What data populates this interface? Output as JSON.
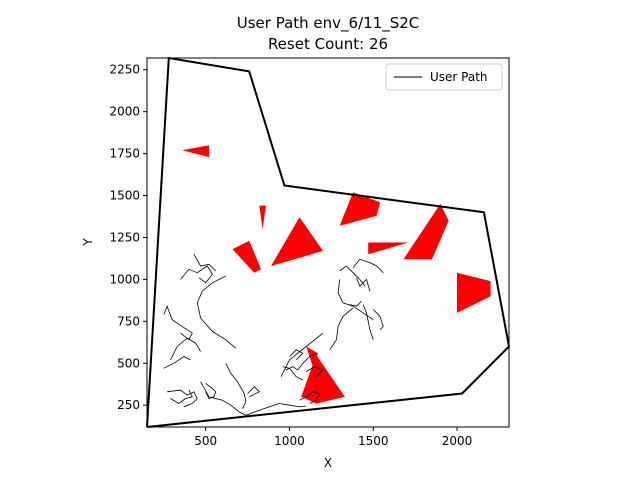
{
  "chart_data": {
    "type": "line",
    "title": "User Path env_6/11_S2C",
    "subtitle": "Reset Count: 26",
    "xlabel": "X",
    "ylabel": "Y",
    "xlim": [
      150,
      2310
    ],
    "ylim": [
      120,
      2320
    ],
    "xticks": [
      500,
      1000,
      1500,
      2000
    ],
    "yticks": [
      250,
      500,
      750,
      1000,
      1250,
      1500,
      1750,
      2000,
      2250
    ],
    "legend": {
      "position": "top-right",
      "entries": [
        "User Path"
      ]
    },
    "boundary": [
      [
        150,
        120
      ],
      [
        280,
        2320
      ],
      [
        760,
        2240
      ],
      [
        970,
        1560
      ],
      [
        2160,
        1400
      ],
      [
        2310,
        600
      ],
      [
        2030,
        320
      ],
      [
        150,
        120
      ]
    ],
    "obstacles": [
      [
        [
          360,
          1770
        ],
        [
          520,
          1800
        ],
        [
          520,
          1730
        ]
      ],
      [
        [
          820,
          1440
        ],
        [
          860,
          1440
        ],
        [
          840,
          1300
        ]
      ],
      [
        [
          890,
          1080
        ],
        [
          1060,
          1370
        ],
        [
          1200,
          1170
        ]
      ],
      [
        [
          660,
          1180
        ],
        [
          760,
          1230
        ],
        [
          830,
          1060
        ],
        [
          790,
          1040
        ]
      ],
      [
        [
          1300,
          1320
        ],
        [
          1380,
          1520
        ],
        [
          1540,
          1460
        ],
        [
          1520,
          1380
        ]
      ],
      [
        [
          1470,
          1220
        ],
        [
          1470,
          1150
        ],
        [
          1710,
          1220
        ]
      ],
      [
        [
          1680,
          1120
        ],
        [
          1900,
          1450
        ],
        [
          1950,
          1350
        ],
        [
          1850,
          1120
        ]
      ],
      [
        [
          2000,
          1040
        ],
        [
          2200,
          990
        ],
        [
          2200,
          900
        ],
        [
          2000,
          800
        ]
      ],
      [
        [
          1100,
          600
        ],
        [
          1170,
          560
        ],
        [
          1140,
          480
        ]
      ],
      [
        [
          1070,
          300
        ],
        [
          1160,
          260
        ],
        [
          1330,
          300
        ],
        [
          1160,
          550
        ]
      ]
    ],
    "series": [
      {
        "name": "User Path",
        "segments": [
          [
            [
              350,
              1000
            ],
            [
              400,
              1060
            ],
            [
              450,
              1040
            ],
            [
              510,
              1080
            ],
            [
              540,
              1030
            ],
            [
              500,
              980
            ],
            [
              460,
              1010
            ]
          ],
          [
            [
              430,
              1150
            ],
            [
              470,
              1080
            ],
            [
              520,
              1090
            ],
            [
              560,
              1050
            ]
          ],
          [
            [
              620,
              1020
            ],
            [
              540,
              980
            ],
            [
              480,
              930
            ],
            [
              450,
              860
            ],
            [
              470,
              770
            ],
            [
              540,
              690
            ],
            [
              620,
              640
            ],
            [
              680,
              590
            ]
          ],
          [
            [
              250,
              790
            ],
            [
              270,
              840
            ],
            [
              300,
              760
            ],
            [
              360,
              720
            ],
            [
              420,
              680
            ],
            [
              400,
              640
            ],
            [
              350,
              680
            ]
          ],
          [
            [
              290,
              520
            ],
            [
              330,
              600
            ],
            [
              390,
              650
            ],
            [
              440,
              620
            ],
            [
              470,
              570
            ]
          ],
          [
            [
              250,
              470
            ],
            [
              310,
              500
            ],
            [
              370,
              540
            ],
            [
              410,
              520
            ]
          ],
          [
            [
              270,
              330
            ],
            [
              350,
              340
            ],
            [
              390,
              310
            ],
            [
              430,
              330
            ],
            [
              450,
              290
            ],
            [
              420,
              260
            ],
            [
              370,
              240
            ]
          ],
          [
            [
              290,
              290
            ],
            [
              340,
              260
            ],
            [
              380,
              290
            ],
            [
              420,
              300
            ],
            [
              400,
              340
            ]
          ],
          [
            [
              500,
              380
            ],
            [
              540,
              350
            ],
            [
              560,
              330
            ],
            [
              550,
              300
            ],
            [
              520,
              290
            ],
            [
              500,
              330
            ]
          ],
          [
            [
              470,
              390
            ],
            [
              520,
              300
            ],
            [
              600,
              280
            ],
            [
              650,
              250
            ],
            [
              700,
              210
            ],
            [
              740,
              190
            ]
          ],
          [
            [
              620,
              500
            ],
            [
              650,
              440
            ],
            [
              690,
              390
            ],
            [
              730,
              320
            ],
            [
              740,
              270
            ],
            [
              720,
              230
            ]
          ],
          [
            [
              740,
              190
            ],
            [
              820,
              220
            ],
            [
              880,
              240
            ],
            [
              940,
              260
            ],
            [
              1000,
              250
            ],
            [
              1060,
              240
            ],
            [
              1100,
              245
            ]
          ],
          [
            [
              750,
              320
            ],
            [
              790,
              360
            ],
            [
              820,
              330
            ],
            [
              760,
              300
            ]
          ],
          [
            [
              950,
              420
            ],
            [
              1000,
              520
            ],
            [
              1050,
              560
            ],
            [
              1100,
              600
            ],
            [
              1150,
              640
            ],
            [
              1200,
              680
            ]
          ],
          [
            [
              1000,
              540
            ],
            [
              1040,
              580
            ],
            [
              1080,
              560
            ],
            [
              1040,
              520
            ]
          ],
          [
            [
              1100,
              450
            ],
            [
              1150,
              480
            ],
            [
              1200,
              460
            ],
            [
              1160,
              420
            ]
          ],
          [
            [
              960,
              480
            ],
            [
              1000,
              470
            ],
            [
              1040,
              420
            ],
            [
              1080,
              400
            ]
          ],
          [
            [
              1060,
              280
            ],
            [
              1100,
              300
            ],
            [
              1140,
              330
            ],
            [
              1180,
              320
            ],
            [
              1160,
              280
            ],
            [
              1120,
              260
            ]
          ],
          [
            [
              980,
              460
            ],
            [
              1020,
              480
            ],
            [
              1050,
              460
            ],
            [
              1080,
              500
            ],
            [
              1120,
              540
            ],
            [
              1160,
              560
            ]
          ],
          [
            [
              1240,
              580
            ],
            [
              1280,
              640
            ],
            [
              1290,
              720
            ],
            [
              1320,
              780
            ],
            [
              1380,
              830
            ]
          ],
          [
            [
              1300,
              1050
            ],
            [
              1340,
              1080
            ],
            [
              1380,
              1040
            ],
            [
              1420,
              1000
            ],
            [
              1450,
              960
            ]
          ],
          [
            [
              1380,
              1070
            ],
            [
              1420,
              1120
            ],
            [
              1480,
              1100
            ],
            [
              1520,
              1080
            ],
            [
              1560,
              1040
            ]
          ],
          [
            [
              1300,
              1000
            ],
            [
              1290,
              920
            ],
            [
              1320,
              860
            ],
            [
              1380,
              840
            ],
            [
              1440,
              800
            ],
            [
              1500,
              760
            ]
          ],
          [
            [
              1400,
              1010
            ],
            [
              1420,
              960
            ],
            [
              1460,
              1000
            ],
            [
              1480,
              930
            ]
          ],
          [
            [
              1440,
              850
            ],
            [
              1460,
              800
            ],
            [
              1480,
              700
            ],
            [
              1500,
              640
            ]
          ],
          [
            [
              1500,
              820
            ],
            [
              1540,
              780
            ],
            [
              1560,
              720
            ],
            [
              1540,
              700
            ]
          ],
          [
            [
              1360,
              850
            ],
            [
              1400,
              840
            ],
            [
              1430,
              870
            ]
          ]
        ]
      }
    ]
  }
}
